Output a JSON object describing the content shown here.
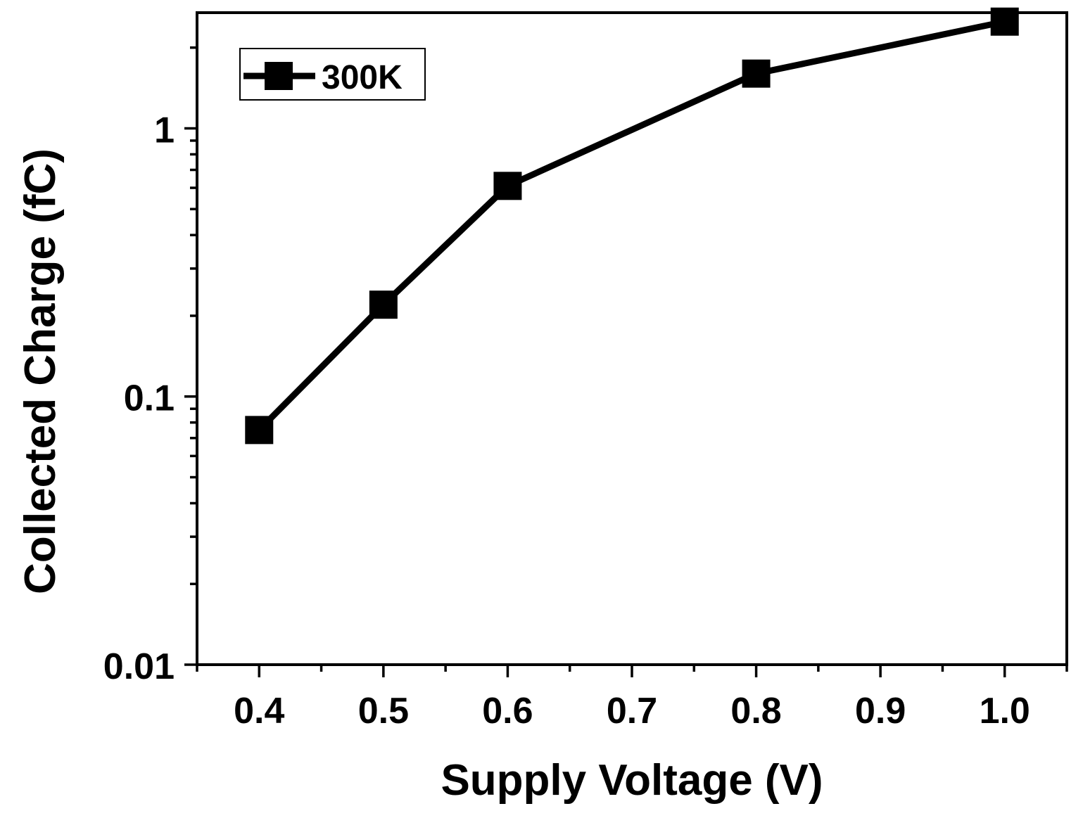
{
  "chart_data": {
    "type": "line",
    "xlabel": "Supply Voltage (V)",
    "ylabel": "Collected Charge (fC)",
    "xlim": [
      0.35,
      1.05
    ],
    "ylim": [
      0.01,
      2.7
    ],
    "yscale": "log",
    "x_ticks": [
      0.4,
      0.5,
      0.6,
      0.7,
      0.8,
      0.9,
      1.0
    ],
    "x_tick_labels": [
      "0.4",
      "0.5",
      "0.6",
      "0.7",
      "0.8",
      "0.9",
      "1.0"
    ],
    "y_ticks": [
      0.01,
      0.1,
      1
    ],
    "y_tick_labels": [
      "0.01",
      "0.1",
      "1"
    ],
    "legend_position": "top-left",
    "series": [
      {
        "name": "300K",
        "color": "#000000",
        "marker": "square",
        "x": [
          0.4,
          0.5,
          0.6,
          0.8,
          1.0
        ],
        "values": [
          0.075,
          0.22,
          0.61,
          1.6,
          2.5
        ]
      }
    ]
  }
}
